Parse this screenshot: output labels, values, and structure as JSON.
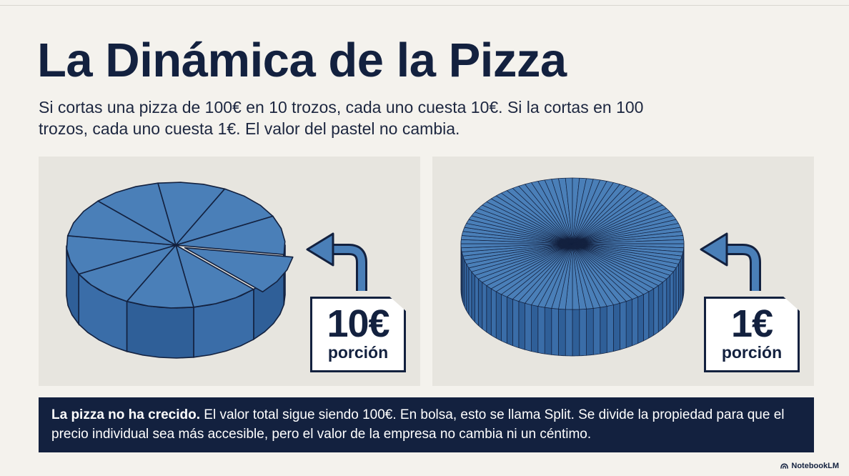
{
  "title": "La Dinámica de la Pizza",
  "subtitle": "Si cortas una pizza de 100€ en 10 trozos, cada uno cuesta 10€. Si la cortas en 100 trozos, cada uno cuesta 1€. El valor del pastel no cambia.",
  "panels": [
    {
      "slices": 10,
      "price": "10€",
      "label": "porción",
      "icon": "pizza-10-slices-icon"
    },
    {
      "slices": 100,
      "price": "1€",
      "label": "porción",
      "icon": "pizza-100-slices-icon"
    }
  ],
  "banner": {
    "bold": "La pizza no ha crecido.",
    "text": " El valor total sigue siendo 100€. En bolsa, esto se llama Split. Se divide la propiedad para que el precio individual sea más accesible, pero el valor de la empresa no cambia ni un céntimo."
  },
  "brand": "NotebookLM",
  "colors": {
    "navy": "#13213f",
    "pizza": "#4a7fb8",
    "pizza_dark": "#2f5f98",
    "background": "#f4f2ed",
    "panel": "#e7e5df"
  }
}
